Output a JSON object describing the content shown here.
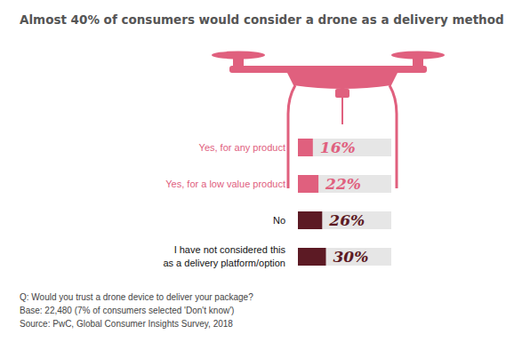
{
  "chart_data": {
    "type": "bar",
    "orientation": "horizontal",
    "title": "Almost 40% of consumers would consider a drone as a delivery method",
    "categories": [
      "Yes, for any product",
      "Yes, for a low value product",
      "No",
      "I have not considered this as a delivery platform/option"
    ],
    "values": [
      16,
      22,
      26,
      30
    ],
    "value_labels": [
      "16%",
      "22%",
      "26%",
      "30%"
    ],
    "colors": [
      "#e0607e",
      "#e0607e",
      "#5c1a24",
      "#5c1a24"
    ],
    "xlim": [
      0,
      100
    ],
    "data_labels": true,
    "tick_labels": "y",
    "grid": false,
    "annotations": [
      "Q: Would you trust a drone device to deliver your package?",
      "Base: 22,480 (7% of consumers selected 'Don't know')",
      "Source: PwC, Global Consumer Insights Survey, 2018"
    ]
  }
}
